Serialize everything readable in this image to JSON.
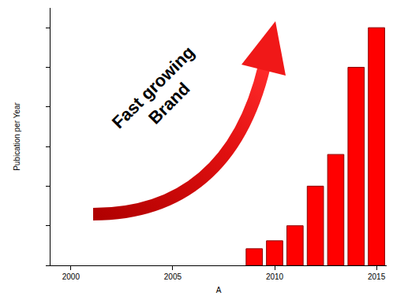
{
  "chart_data": {
    "type": "bar",
    "x_label": "A",
    "y_label": "Pubication per Year",
    "annotation": "Fast growing Brand",
    "x": [
      2009,
      2010,
      2011,
      2012,
      2013,
      2014,
      2015
    ],
    "values": [
      0.42,
      0.62,
      1.0,
      2.0,
      2.8,
      5.0,
      6.0
    ],
    "color": "#ff0000",
    "xlim": [
      1999,
      2015.5
    ],
    "xticks": [
      2000,
      2005,
      2010,
      2015
    ],
    "ylim": [
      0,
      6.5
    ],
    "yticks": [
      0,
      1,
      2,
      3,
      4,
      5,
      6
    ],
    "tick_labels": "x",
    "grid": false
  }
}
